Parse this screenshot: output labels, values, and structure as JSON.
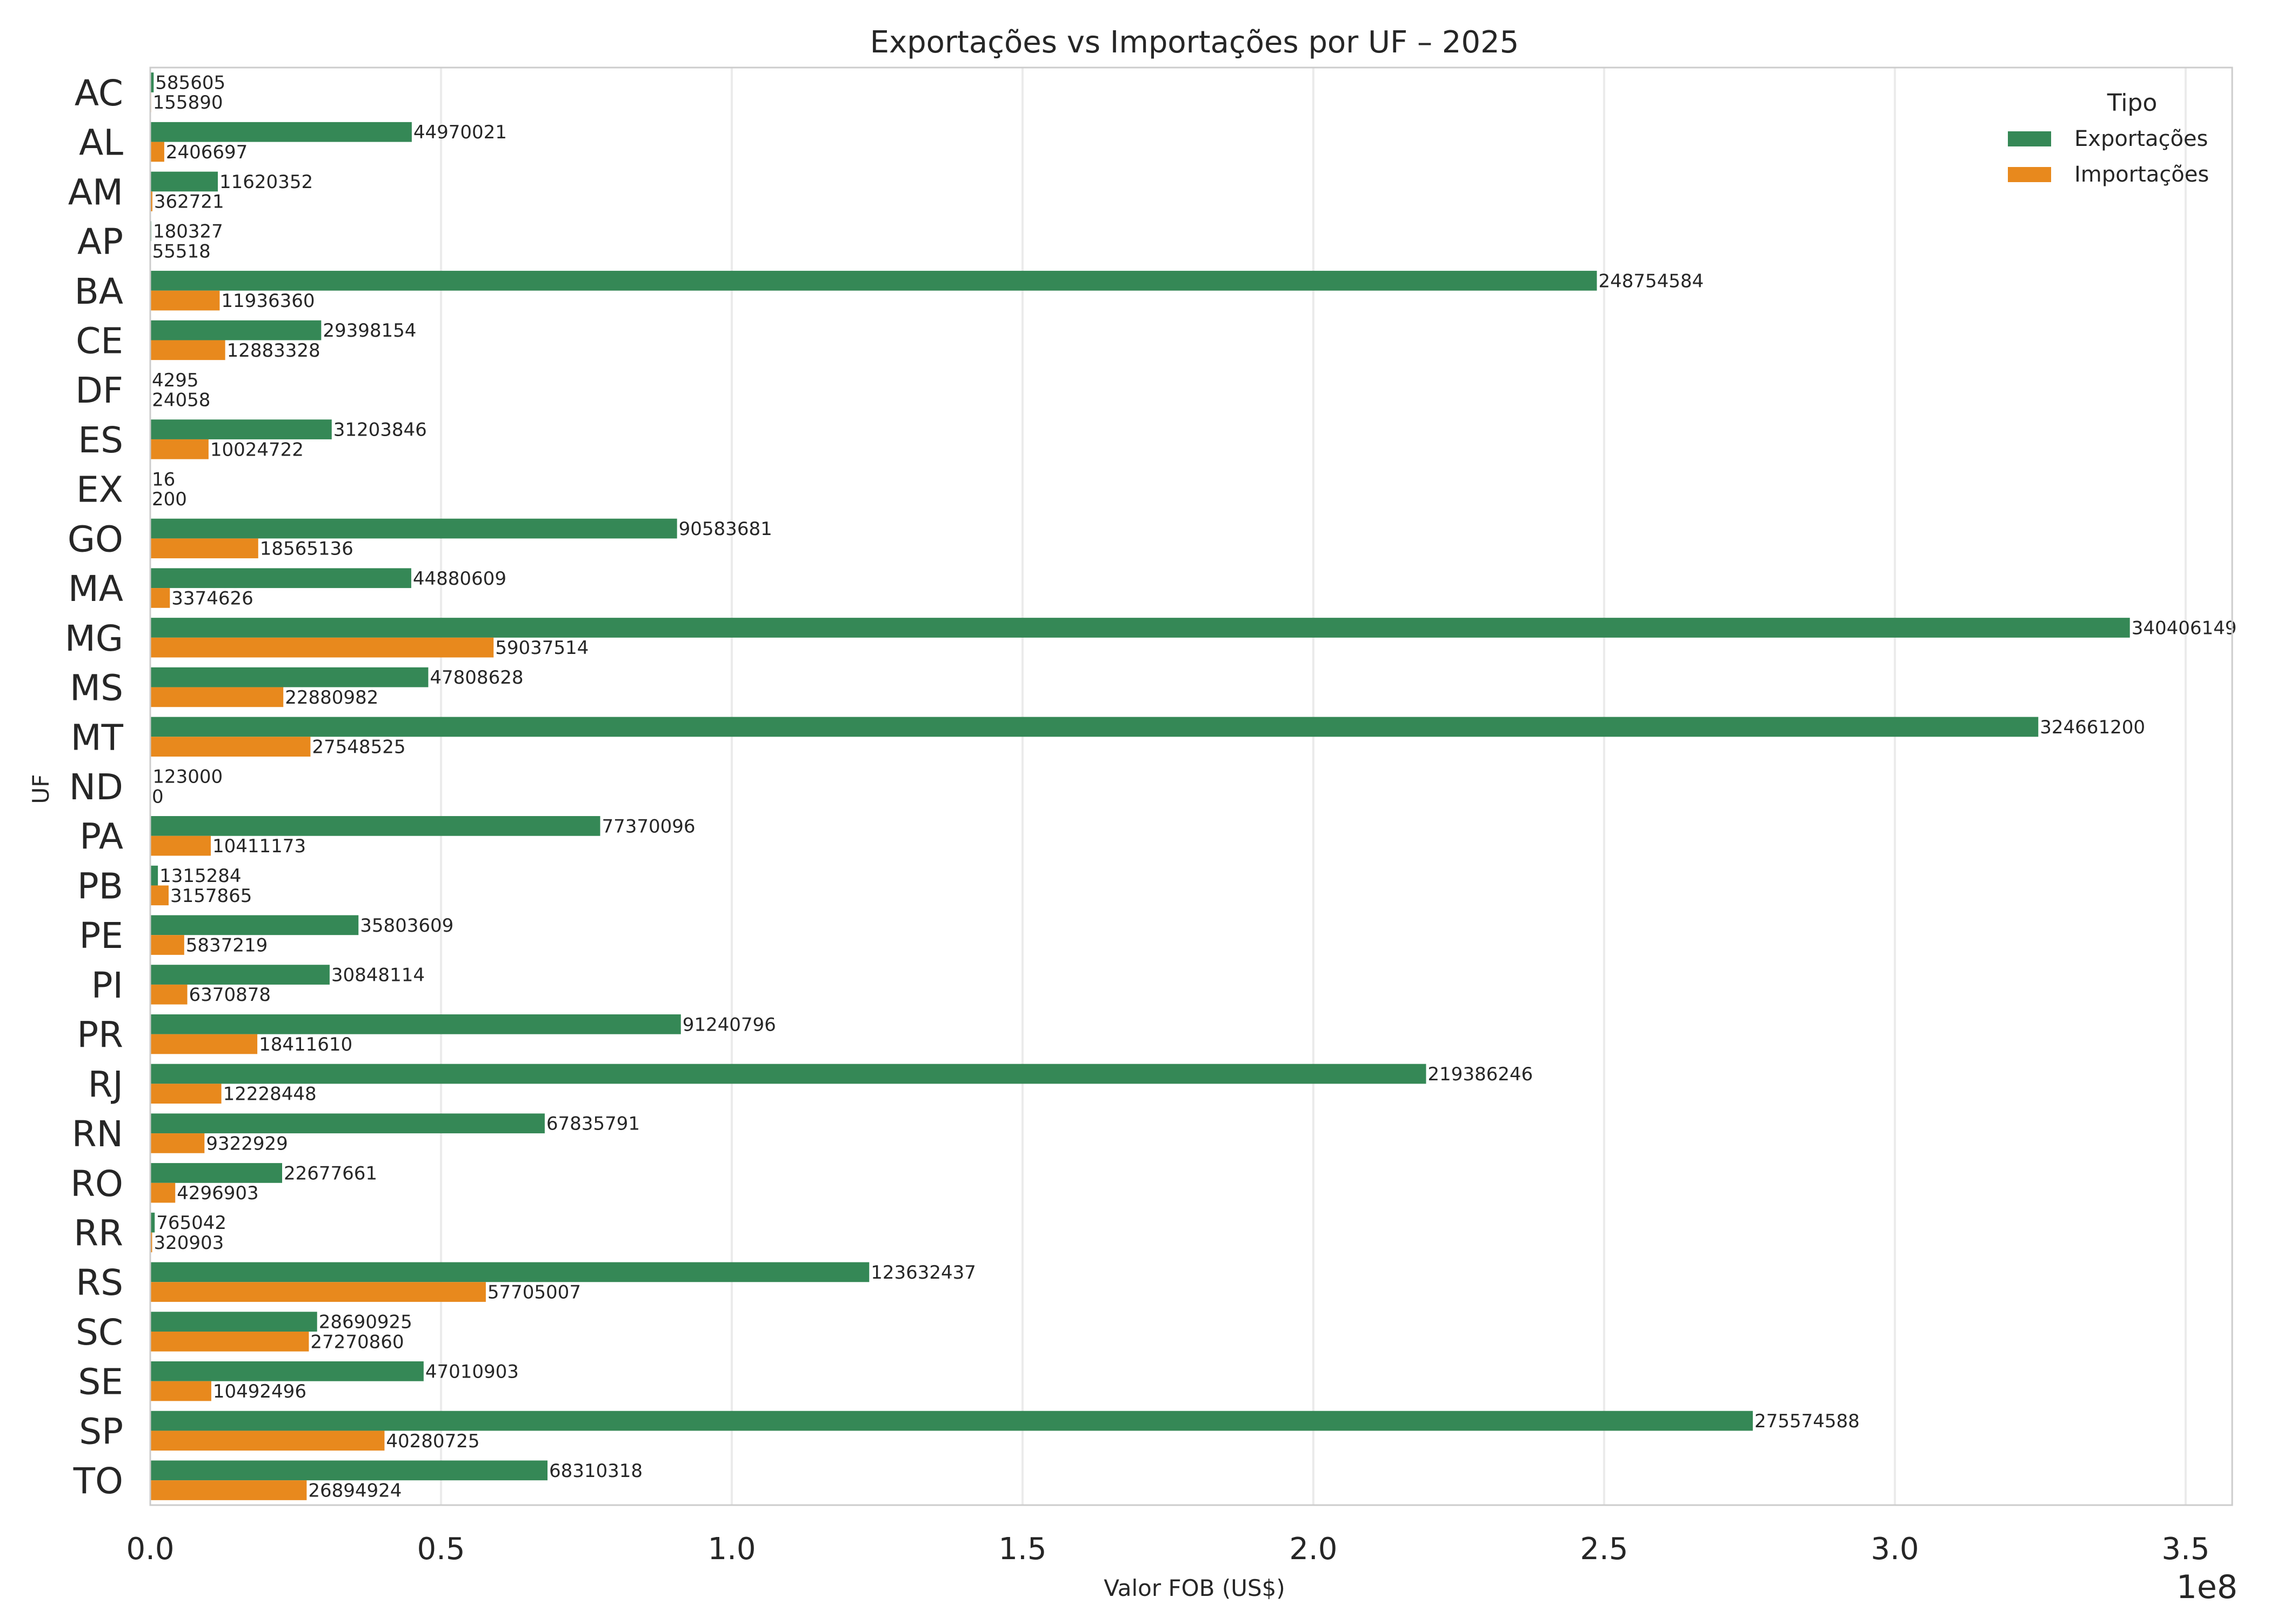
{
  "chart_data": {
    "type": "bar",
    "orientation": "horizontal",
    "title": "Exportações vs Importações por UF – 2025",
    "xlabel": "Valor FOB (US$)",
    "ylabel": "UF",
    "x_offset_text": "1e8",
    "x_scale": 100000000,
    "xlim": [
      0,
      358000000
    ],
    "x_ticks": [
      0,
      50000000,
      100000000,
      150000000,
      200000000,
      250000000,
      300000000,
      350000000
    ],
    "x_tick_labels": [
      "0.0",
      "0.5",
      "1.0",
      "1.5",
      "2.0",
      "2.5",
      "3.0",
      "3.5"
    ],
    "grid": "vertical",
    "legend_position": "top-right",
    "legend_title": "Tipo",
    "categories": [
      "AC",
      "AL",
      "AM",
      "AP",
      "BA",
      "CE",
      "DF",
      "ES",
      "EX",
      "GO",
      "MA",
      "MG",
      "MS",
      "MT",
      "ND",
      "PA",
      "PB",
      "PE",
      "PI",
      "PR",
      "RJ",
      "RN",
      "RO",
      "RR",
      "RS",
      "SC",
      "SE",
      "SP",
      "TO"
    ],
    "series": [
      {
        "name": "Exportações",
        "color": "#358856",
        "values": [
          585605,
          44970021,
          11620352,
          180327,
          248754584,
          29398154,
          4295,
          31203846,
          16,
          90583681,
          44880609,
          340406149,
          47808628,
          324661200,
          123000,
          77370096,
          1315284,
          35803609,
          30848114,
          91240796,
          219386246,
          67835791,
          22677661,
          765042,
          123632437,
          28690925,
          47010903,
          275574588,
          68310318
        ]
      },
      {
        "name": "Importações",
        "color": "#e8891d",
        "values": [
          155890,
          2406697,
          362721,
          55518,
          11936360,
          12883328,
          24058,
          10024722,
          200,
          18565136,
          3374626,
          59037514,
          22880982,
          27548525,
          0,
          10411173,
          3157865,
          5837219,
          6370878,
          18411610,
          12228448,
          9322929,
          4296903,
          320903,
          57705007,
          27270860,
          10492496,
          40280725,
          26894924
        ]
      }
    ]
  }
}
